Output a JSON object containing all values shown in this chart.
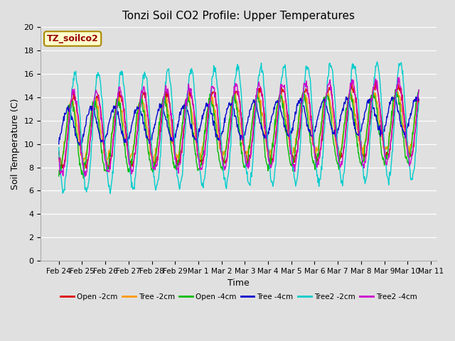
{
  "title": "Tonzi Soil CO2 Profile: Upper Temperatures",
  "xlabel": "Time",
  "ylabel": "Soil Temperature (C)",
  "ylim": [
    0,
    20
  ],
  "yticks": [
    0,
    2,
    4,
    6,
    8,
    10,
    12,
    14,
    16,
    18,
    20
  ],
  "background_color": "#e0e0e0",
  "label_box_color": "#ffffcc",
  "label_box_text": "TZ_soilco2",
  "label_box_text_color": "#990000",
  "series": [
    {
      "label": "Open -2cm",
      "color": "#dd0000"
    },
    {
      "label": "Tree -2cm",
      "color": "#ff9900"
    },
    {
      "label": "Open -4cm",
      "color": "#00bb00"
    },
    {
      "label": "Tree -4cm",
      "color": "#0000cc"
    },
    {
      "label": "Tree2 -2cm",
      "color": "#00cccc"
    },
    {
      "label": "Tree2 -4cm",
      "color": "#cc00cc"
    }
  ],
  "x_tick_labels": [
    "Feb 24",
    "Feb 25",
    "Feb 26",
    "Feb 27",
    "Feb 28",
    "Mar 1",
    "Mar 2",
    "Mar 3",
    "Mar 4",
    "Mar 5",
    "Mar 6",
    "Mar 7",
    "Mar 8",
    "Mar 9",
    "Mar 10",
    "Mar 11"
  ],
  "n_days": 15.5,
  "pts_per_day": 48,
  "series_params": [
    {
      "base": 11.0,
      "amp": 3.0,
      "phase": 0.0,
      "noise": 0.2
    },
    {
      "base": 11.0,
      "amp": 2.5,
      "phase": 0.08,
      "noise": 0.2
    },
    {
      "base": 10.5,
      "amp": 3.0,
      "phase": 0.12,
      "noise": 0.2
    },
    {
      "base": 11.5,
      "amp": 1.5,
      "phase": 0.25,
      "noise": 0.15
    },
    {
      "base": 11.0,
      "amp": 5.0,
      "phase": -0.05,
      "noise": 0.2
    },
    {
      "base": 11.0,
      "amp": 3.5,
      "phase": 0.02,
      "noise": 0.2
    }
  ]
}
